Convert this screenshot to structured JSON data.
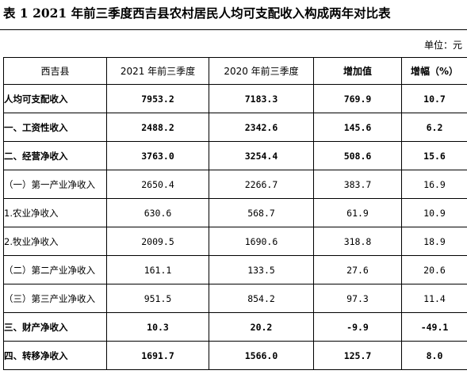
{
  "title": "表 1    2021 年前三季度西吉县农村居民人均可支配收入构成两年对比表",
  "unit": "单位：元",
  "headers": [
    "西吉县",
    "2021 年前三季度",
    "2020 年前三季度",
    "增加值",
    "增幅（%）"
  ],
  "rows": [
    {
      "label": "人均可支配收入",
      "v2021": "7953.2",
      "v2020": "7183.3",
      "inc": "769.9",
      "pct": "10.7",
      "bold": true
    },
    {
      "label": "一、工资性收入",
      "v2021": "2488.2",
      "v2020": "2342.6",
      "inc": "145.6",
      "pct": "6.2",
      "bold": true
    },
    {
      "label": "二、经营净收入",
      "v2021": "3763.0",
      "v2020": "3254.4",
      "inc": "508.6",
      "pct": "15.6",
      "bold": true
    },
    {
      "label": "（一）第一产业净收入",
      "v2021": "2650.4",
      "v2020": "2266.7",
      "inc": "383.7",
      "pct": "16.9",
      "bold": false
    },
    {
      "label": "1.农业净收入",
      "v2021": "630.6",
      "v2020": "568.7",
      "inc": "61.9",
      "pct": "10.9",
      "bold": false
    },
    {
      "label": "2.牧业净收入",
      "v2021": "2009.5",
      "v2020": "1690.6",
      "inc": "318.8",
      "pct": "18.9",
      "bold": false
    },
    {
      "label": "（二）第二产业净收入",
      "v2021": "161.1",
      "v2020": "133.5",
      "inc": "27.6",
      "pct": "20.6",
      "bold": false
    },
    {
      "label": "（三）第三产业净收入",
      "v2021": "951.5",
      "v2020": "854.2",
      "inc": "97.3",
      "pct": "11.4",
      "bold": false
    },
    {
      "label": "三、财产净收入",
      "v2021": "10.3",
      "v2020": "20.2",
      "inc": "-9.9",
      "pct": "-49.1",
      "bold": true
    },
    {
      "label": "四、转移净收入",
      "v2021": "1691.7",
      "v2020": "1566.0",
      "inc": "125.7",
      "pct": "8.0",
      "bold": true
    }
  ]
}
